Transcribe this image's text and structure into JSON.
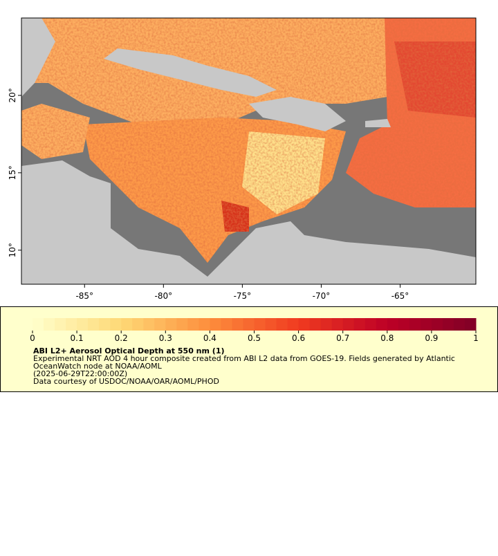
{
  "map": {
    "xlim": [
      -89,
      -60.2
    ],
    "ylim": [
      7.8,
      25
    ],
    "xticks": [
      {
        "value": -85,
        "label": "-85°"
      },
      {
        "value": -80,
        "label": "-80°"
      },
      {
        "value": -75,
        "label": "-75°"
      },
      {
        "value": -70,
        "label": "-70°"
      },
      {
        "value": -65,
        "label": "-65°"
      }
    ],
    "yticks": [
      {
        "value": 10,
        "label": "10°"
      },
      {
        "value": 15,
        "label": "15°"
      },
      {
        "value": 20,
        "label": "20°"
      }
    ]
  },
  "colorbar": {
    "lim": [
      0,
      1
    ],
    "ticks": [
      0,
      0.1,
      0.2,
      0.3,
      0.4,
      0.5,
      0.6,
      0.7,
      0.8,
      0.9,
      1
    ],
    "colors": [
      "#ffffcc",
      "#fed976",
      "#fd8d3c",
      "#f03b20",
      "#bd0026",
      "#800026"
    ]
  },
  "legend": {
    "title": "ABI L2+ Aerosol Optical Depth at 550 nm (1)",
    "lines": [
      "Experimental NRT AOD 4 hour composite created from ABI L2 data from GOES-19. Fields generated by Atlantic",
      "OceanWatch node at NOAA/AOML",
      "(2025-06-29T22:00:00Z)",
      "Data courtesy of USDOC/NOAA/OAR/AOML/PHOD"
    ]
  }
}
